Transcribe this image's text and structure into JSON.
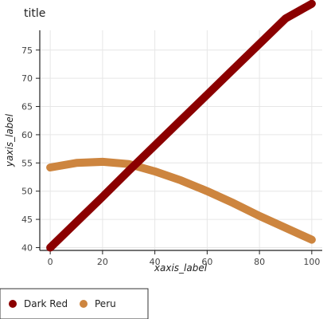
{
  "chart_data": {
    "type": "line",
    "title": "title",
    "xlabel": "xaxis_label",
    "ylabel": "yaxis_label",
    "xlim": [
      -4,
      104
    ],
    "ylim": [
      39.5,
      78.5
    ],
    "xticks": [
      0,
      20,
      40,
      60,
      80,
      100
    ],
    "yticks": [
      40,
      45,
      50,
      55,
      60,
      65,
      70,
      75
    ],
    "grid": true,
    "legend_position": "bottom",
    "series": [
      {
        "name": "Dark Red",
        "color": "#8b0000",
        "x": [
          0,
          10,
          20,
          30,
          40,
          50,
          60,
          70,
          80,
          90,
          100
        ],
        "y": [
          40,
          44.5,
          49,
          53.6,
          58.1,
          62.6,
          67.1,
          71.6,
          76.1,
          80.6,
          83.2
        ]
      },
      {
        "name": "Peru",
        "color": "#cd853f",
        "x": [
          0,
          10,
          20,
          30,
          40,
          50,
          60,
          70,
          80,
          90,
          100
        ],
        "y": [
          54.2,
          55.0,
          55.2,
          54.8,
          53.5,
          51.9,
          50.0,
          47.9,
          45.6,
          43.5,
          41.4
        ]
      }
    ]
  }
}
